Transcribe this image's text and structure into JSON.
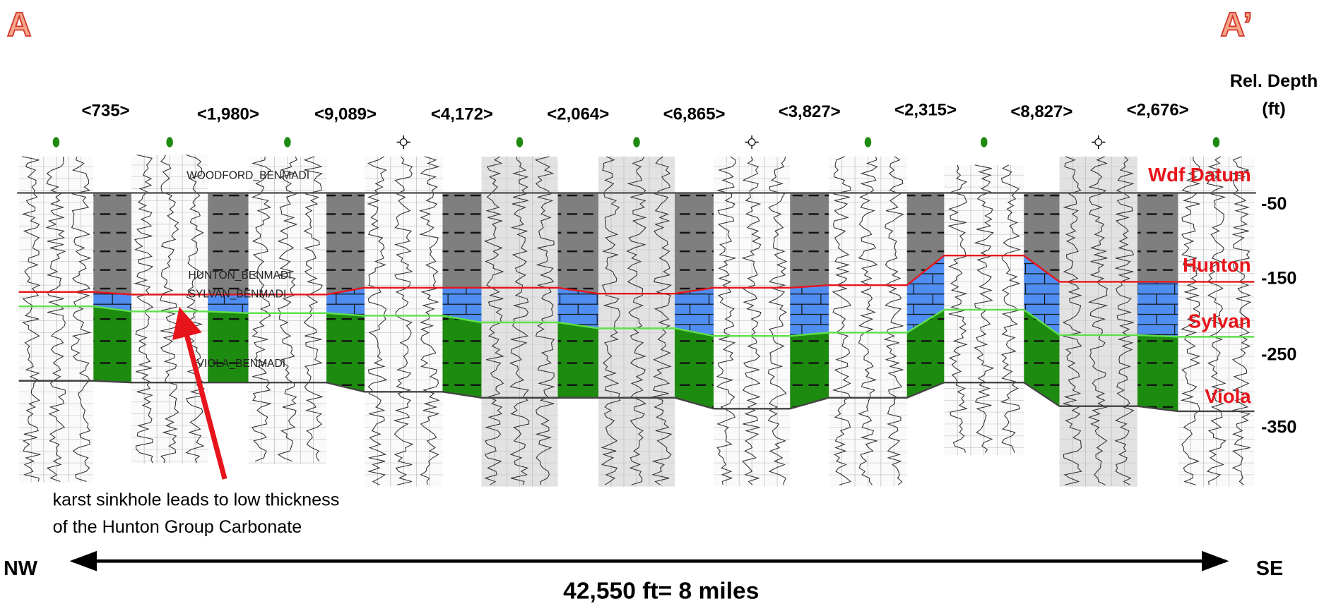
{
  "header": {
    "left_label": "A",
    "right_label": "A’"
  },
  "depth_axis": {
    "title_line1": "Rel. Depth",
    "title_line2": "(ft)",
    "ticks": [
      "-50",
      "-150",
      "-250",
      "-350"
    ]
  },
  "spacings": [
    "<735>",
    "<1,980>",
    "<9,089>",
    "<4,172>",
    "<2,064>",
    "<6,865>",
    "<3,827>",
    "<2,315>",
    "<8,827>",
    "<2,676>"
  ],
  "formations": [
    "Wdf Datum",
    "Hunton",
    "Sylvan",
    "Viola"
  ],
  "log_tops": [
    "WOODFORD_BENMADI",
    "HUNTON_BENMADI",
    "SYLVAN_BENMADI",
    "VIOLA_BENMADI"
  ],
  "annotation": [
    "karst sinkhole leads to low thickness",
    "of the Hunton Group Carbonate"
  ],
  "direction": {
    "left": "NW",
    "right": "SE",
    "distance": "42,550 ft= 8 miles"
  }
}
